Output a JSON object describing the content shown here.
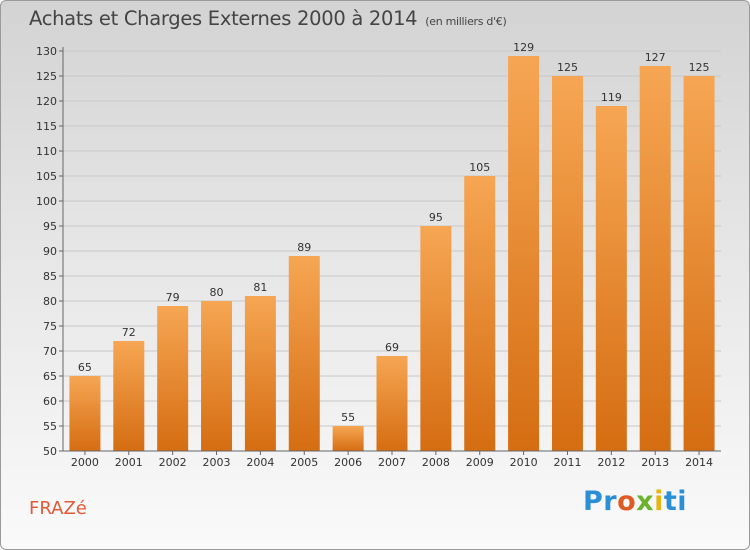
{
  "title": "Achats et Charges Externes 2000 à 2014",
  "subtitle": "(en milliers d'€)",
  "location": "FRAZé",
  "logo": {
    "p1": "Pr",
    "p2": "o",
    "p3": "x",
    "p4": "i",
    "p5": "ti"
  },
  "colors": {
    "bar_light": "#f6a653",
    "bar_dark": "#d56d12",
    "axis_text": "#333333",
    "location": "#e05a3a"
  },
  "chart_data": {
    "type": "bar",
    "categories": [
      "2000",
      "2001",
      "2002",
      "2003",
      "2004",
      "2005",
      "2006",
      "2007",
      "2008",
      "2009",
      "2010",
      "2011",
      "2012",
      "2013",
      "2014"
    ],
    "values": [
      65,
      72,
      79,
      80,
      81,
      89,
      55,
      69,
      95,
      105,
      129,
      125,
      119,
      127,
      125
    ],
    "ylim": [
      50,
      130
    ],
    "yticks": [
      50,
      55,
      60,
      65,
      70,
      75,
      80,
      85,
      90,
      95,
      100,
      105,
      110,
      115,
      120,
      125,
      130
    ],
    "grid": true,
    "legend": "none"
  }
}
